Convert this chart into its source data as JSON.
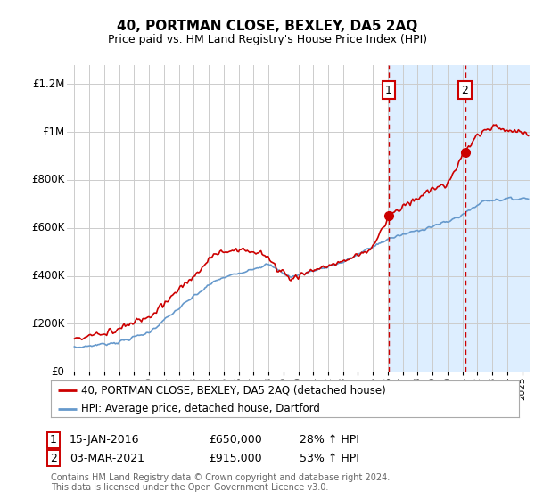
{
  "title": "40, PORTMAN CLOSE, BEXLEY, DA5 2AQ",
  "subtitle": "Price paid vs. HM Land Registry's House Price Index (HPI)",
  "legend_line1": "40, PORTMAN CLOSE, BEXLEY, DA5 2AQ (detached house)",
  "legend_line2": "HPI: Average price, detached house, Dartford",
  "footnote": "Contains HM Land Registry data © Crown copyright and database right 2024.\nThis data is licensed under the Open Government Licence v3.0.",
  "sale1_date": "15-JAN-2016",
  "sale1_price": "£650,000",
  "sale1_hpi": "28% ↑ HPI",
  "sale2_date": "03-MAR-2021",
  "sale2_price": "£915,000",
  "sale2_hpi": "53% ↑ HPI",
  "sale1_year": 2016.04,
  "sale2_year": 2021.17,
  "sale1_price_val": 650000,
  "sale2_price_val": 915000,
  "red_color": "#cc0000",
  "blue_color": "#6699cc",
  "shade_color": "#ddeeff",
  "background_color": "#ffffff",
  "grid_color": "#cccccc",
  "ylim": [
    0,
    1280000
  ],
  "xlim": [
    1994.5,
    2025.5
  ],
  "yticks": [
    0,
    200000,
    400000,
    600000,
    800000,
    1000000,
    1200000
  ],
  "ytick_labels": [
    "£0",
    "£200K",
    "£400K",
    "£600K",
    "£800K",
    "£1M",
    "£1.2M"
  ]
}
